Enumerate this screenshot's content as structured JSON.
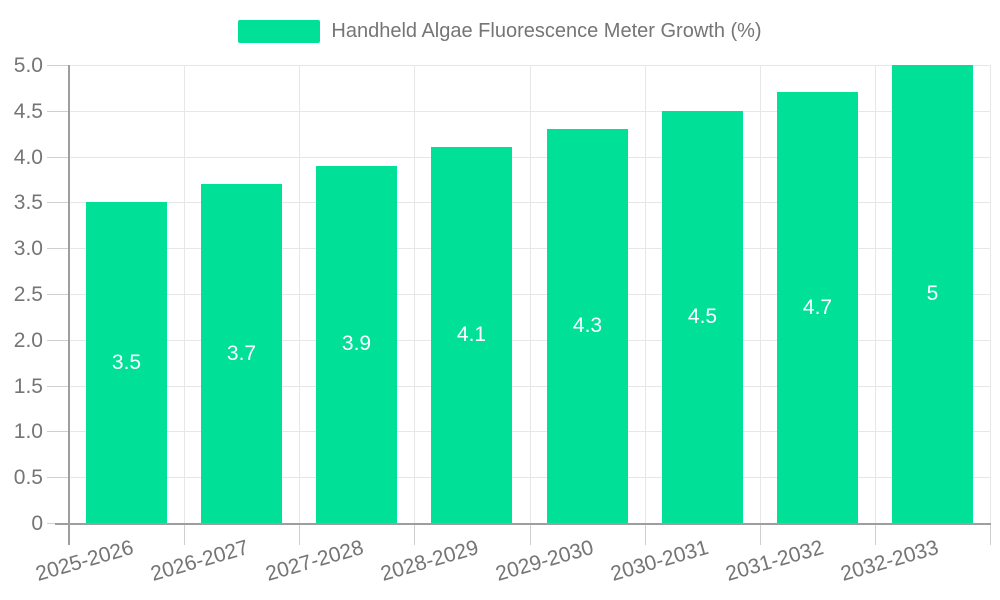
{
  "legend": {
    "label": "Handheld Algae Fluorescence Meter Growth (%)"
  },
  "chart_data": {
    "type": "bar",
    "title": "Handheld Algae Fluorescence Meter Growth (%)",
    "series_name": "Handheld Algae Fluorescence Meter Growth (%)",
    "categories": [
      "2025-2026",
      "2026-2027",
      "2027-2028",
      "2028-2029",
      "2029-2030",
      "2030-2031",
      "2031-2032",
      "2032-2033"
    ],
    "values": [
      3.5,
      3.7,
      3.9,
      4.1,
      4.3,
      4.5,
      4.7,
      5
    ],
    "bar_value_labels": [
      "3.5",
      "3.7",
      "3.9",
      "4.1",
      "4.3",
      "4.5",
      "4.7",
      "5"
    ],
    "xlabel": "",
    "ylabel": "",
    "ylim": [
      0,
      5
    ],
    "ytick_values": [
      0,
      0.5,
      1,
      1.5,
      2,
      2.5,
      3,
      3.5,
      4,
      4.5,
      5
    ],
    "ytick_labels": [
      "0",
      "0.5",
      "1.0",
      "1.5",
      "2.0",
      "2.5",
      "3.0",
      "3.5",
      "4.0",
      "4.5",
      "5.0"
    ],
    "grid": true,
    "legend_position": "top",
    "value_labels_position": "center-inside",
    "colors": {
      "bar": "#00E096",
      "grid": "#e7e7e7",
      "axis": "#9e9e9e",
      "tick": "#cfcfcf",
      "label_text": "#757575",
      "value_text": "#ffffff"
    }
  }
}
